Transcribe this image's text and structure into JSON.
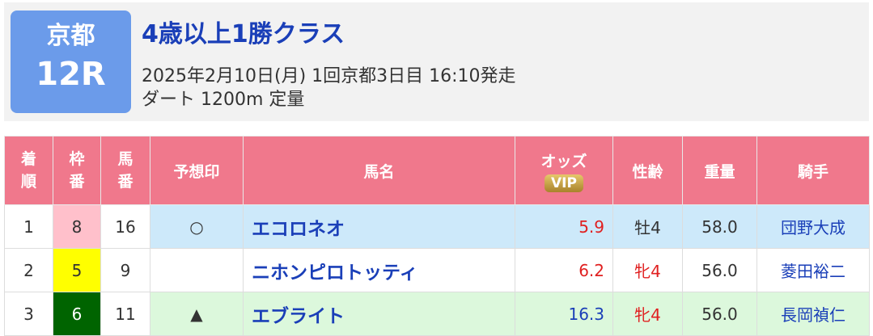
{
  "header": {
    "venue": "京都",
    "race": "12R",
    "title": "4歳以上1勝クラス",
    "date_line": "2025年2月10日(月) 1回京都3日目 16:10発走",
    "course_line": "ダート 1200m 定量"
  },
  "table": {
    "columns": [
      "着順",
      "枠番",
      "馬番",
      "予想印",
      "馬名",
      "オッズ",
      "性齢",
      "重量",
      "騎手"
    ],
    "vip": "VIP",
    "rows": [
      [
        "1",
        "8",
        "16",
        "○",
        "エコロネオ",
        "5.9",
        "牡4",
        "58.0",
        "団野大成"
      ],
      [
        "2",
        "5",
        "9",
        "",
        "ニホンピロトッティ",
        "6.2",
        "牝4",
        "56.0",
        "菱田裕二"
      ],
      [
        "3",
        "6",
        "11",
        "▲",
        "エブライト",
        "16.3",
        "牝4",
        "56.0",
        "長岡禎仁"
      ]
    ]
  }
}
